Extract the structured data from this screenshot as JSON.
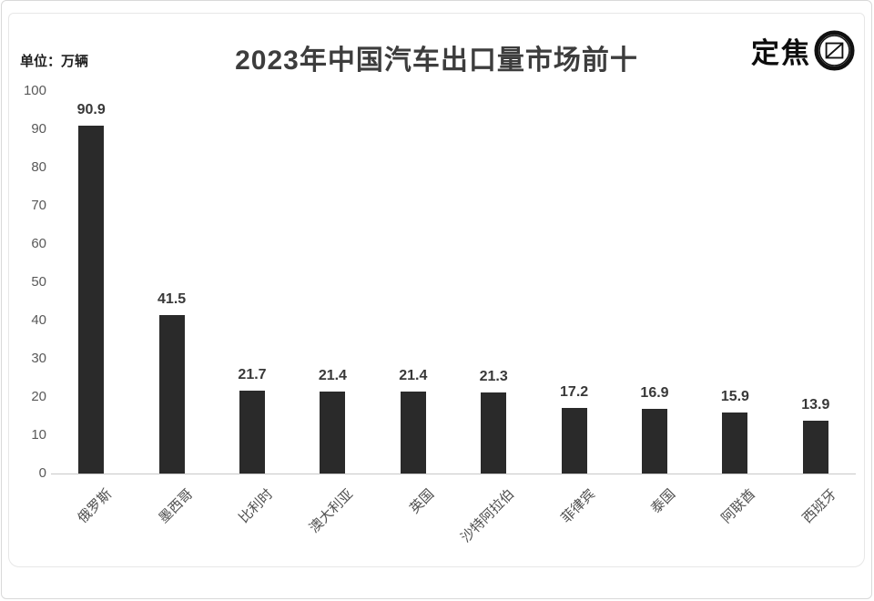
{
  "header": {
    "unit_label": "单位：万辆",
    "title": "2023年中国汽车出口量市场前十",
    "logo_text": "定焦"
  },
  "chart_data": {
    "type": "bar",
    "title": "2023年中国汽车出口量市场前十",
    "unit": "万辆",
    "categories": [
      "俄罗斯",
      "墨西哥",
      "比利时",
      "澳大利亚",
      "英国",
      "沙特阿拉伯",
      "菲律宾",
      "泰国",
      "阿联酋",
      "西班牙"
    ],
    "values": [
      90.9,
      41.5,
      21.7,
      21.4,
      21.4,
      21.3,
      17.2,
      16.9,
      15.9,
      13.9
    ],
    "ylim": [
      0,
      100
    ],
    "yticks": [
      0,
      10,
      20,
      30,
      40,
      50,
      60,
      70,
      80,
      90,
      100
    ],
    "xlabel": "",
    "ylabel": "",
    "grid": false,
    "legend": false,
    "value_labels": true
  },
  "colors": {
    "bar": "#2a2a2a",
    "axis_line": "#c9c9c9",
    "tick_text": "#595959",
    "category_text": "#4f4f4f",
    "value_text": "#383838",
    "title_text": "#3d3d3d",
    "logo": "#111111"
  }
}
